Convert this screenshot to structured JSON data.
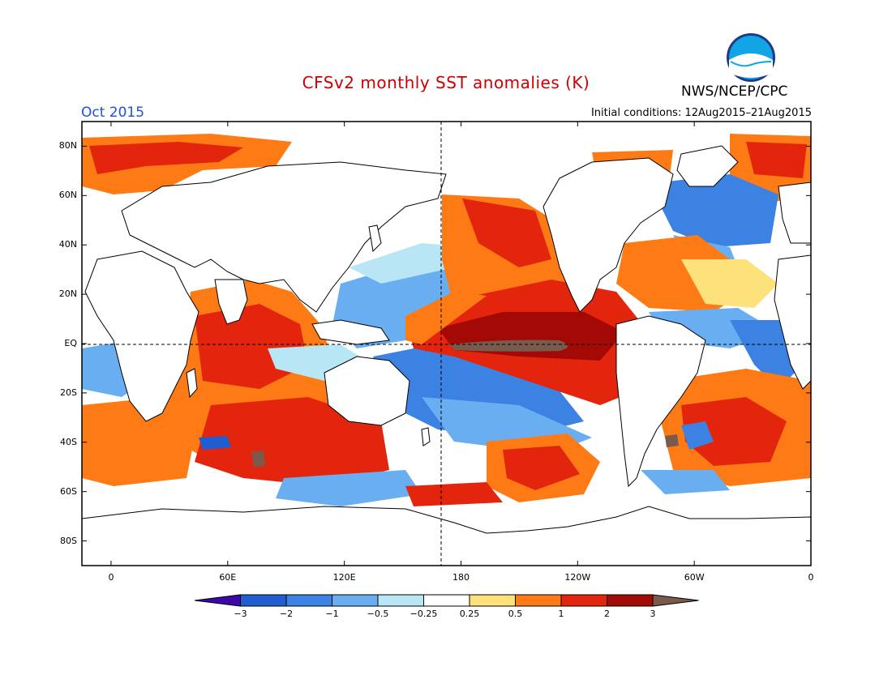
{
  "header": {
    "title": "CFSv2 monthly SST anomalies (K)",
    "title_color": "#cc0000",
    "agency": "NWS/NCEP/CPC",
    "period": "Oct 2015",
    "period_color": "#1f4fe0",
    "initial_conditions": "Initial conditions: 12Aug2015–21Aug2015",
    "logo": "noaa-logo"
  },
  "map": {
    "lat_labels": [
      "80N",
      "60N",
      "40N",
      "20N",
      "EQ",
      "20S",
      "40S",
      "60S",
      "80S"
    ],
    "lon_labels": [
      "0",
      "60E",
      "120E",
      "180",
      "120W",
      "60W",
      "0"
    ]
  },
  "colorbar": {
    "labels": [
      "−3",
      "−2",
      "−1",
      "−0.5",
      "−0.25",
      "0.25",
      "0.5",
      "1",
      "2",
      "3"
    ],
    "colors": [
      "#3e07a8",
      "#1f5dd1",
      "#3b82e3",
      "#6aaef2",
      "#b8e6f5",
      "#ffffff",
      "#fde27c",
      "#fd7a14",
      "#e3250e",
      "#a30a06",
      "#7a5a4c"
    ]
  }
}
